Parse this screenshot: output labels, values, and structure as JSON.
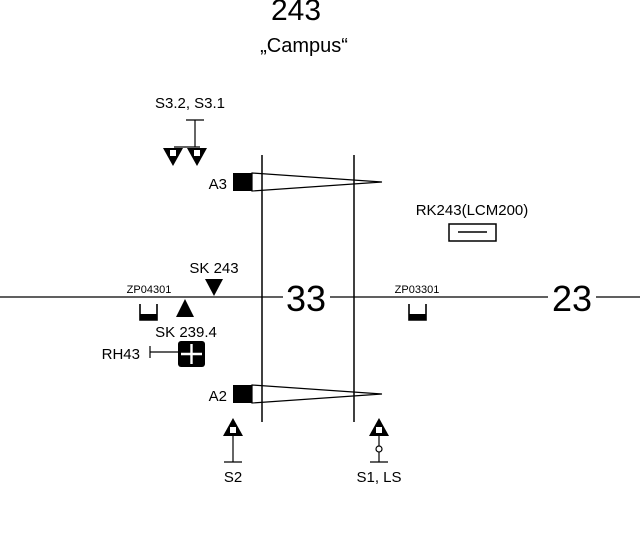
{
  "station": {
    "number": "243",
    "name": "„Campus“"
  },
  "signals": {
    "top": "S3.2, S3.1",
    "left_bottom": "S2",
    "right_bottom": "S1, LS"
  },
  "switches": {
    "top": "A3",
    "bottom": "A2"
  },
  "labels": {
    "rk": "RK243(LCM200)",
    "sk243": "SK 243",
    "sk239": "SK 239.4",
    "rh": "RH43",
    "zp_left": "ZP04301",
    "zp_right": "ZP03301",
    "track_33": "33",
    "track_23": "23"
  },
  "colors": {
    "line": "#000000",
    "background": "#ffffff"
  }
}
